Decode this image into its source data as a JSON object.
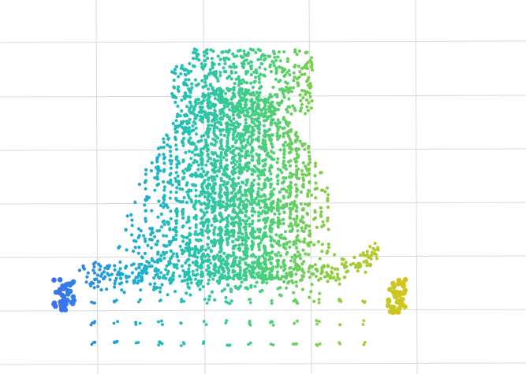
{
  "chart_data": {
    "type": "scatter",
    "title": "",
    "xlabel": "",
    "ylabel": "",
    "grid": true,
    "legend": "none",
    "colormap": {
      "name": "blue-to-yellow",
      "stops": [
        "#3f6cf2",
        "#1aa6d8",
        "#26c2b0",
        "#46cf7d",
        "#8fce3e",
        "#d2c51d"
      ]
    },
    "clusters": [
      {
        "name": "left-edge-blob",
        "x": 0.05,
        "y": 0.22,
        "count": 40
      },
      {
        "name": "right-edge-blob",
        "x": 0.96,
        "y": 0.2,
        "count": 40
      },
      {
        "name": "main-mass",
        "x": 0.5,
        "y": 0.6,
        "count": 2400
      },
      {
        "name": "upper-plateau",
        "x": 0.5,
        "y": 0.92,
        "count": 500
      },
      {
        "name": "lower-skirt",
        "x": 0.5,
        "y": 0.22,
        "count": 400
      },
      {
        "name": "lattice-rows",
        "x": 0.5,
        "y": 0.1,
        "count": 220
      }
    ]
  }
}
